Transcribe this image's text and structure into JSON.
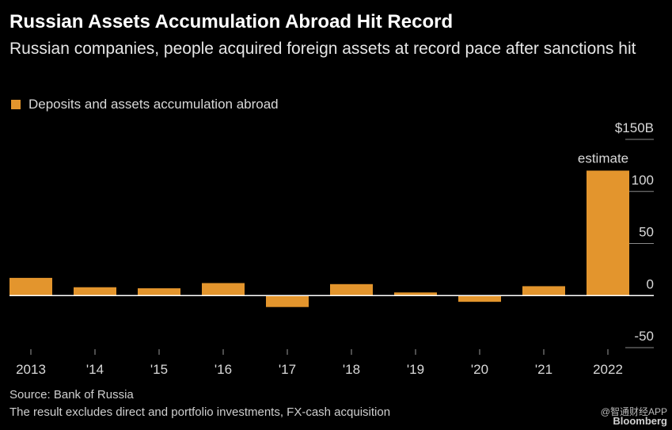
{
  "title": "Russian Assets Accumulation Abroad Hit Record",
  "subtitle": "Russian companies, people acquired foreign assets at record pace after sanctions hit",
  "legend_label": "Deposits and assets accumulation abroad",
  "colors": {
    "bar": "#e3952d",
    "background": "#000000",
    "grid": "#8a8a8a",
    "baseline": "#ffffff"
  },
  "chart_data": {
    "type": "bar",
    "categories": [
      "2013",
      "'14",
      "'15",
      "'16",
      "'17",
      "'18",
      "'19",
      "'20",
      "'21",
      "2022"
    ],
    "series": [
      {
        "name": "Deposits and assets accumulation abroad",
        "values": [
          17,
          8,
          7,
          12,
          -11,
          11,
          3,
          -6,
          9,
          120
        ]
      }
    ],
    "ylim": [
      -50,
      150
    ],
    "yticks": [
      {
        "value": 150,
        "label": "$150B"
      },
      {
        "value": 100,
        "label": "100"
      },
      {
        "value": 50,
        "label": "50"
      },
      {
        "value": 0,
        "label": "0"
      },
      {
        "value": -50,
        "label": "-50"
      }
    ],
    "annotation": {
      "category": "2022",
      "text": "estimate"
    },
    "y_axis_side": "right",
    "grid": true
  },
  "source": "Source: Bank of Russia",
  "note": "The result excludes direct and portfolio investments, FX-cash acquisition",
  "watermark": {
    "app": "@智通财经APP",
    "brand": "Bloomberg"
  }
}
